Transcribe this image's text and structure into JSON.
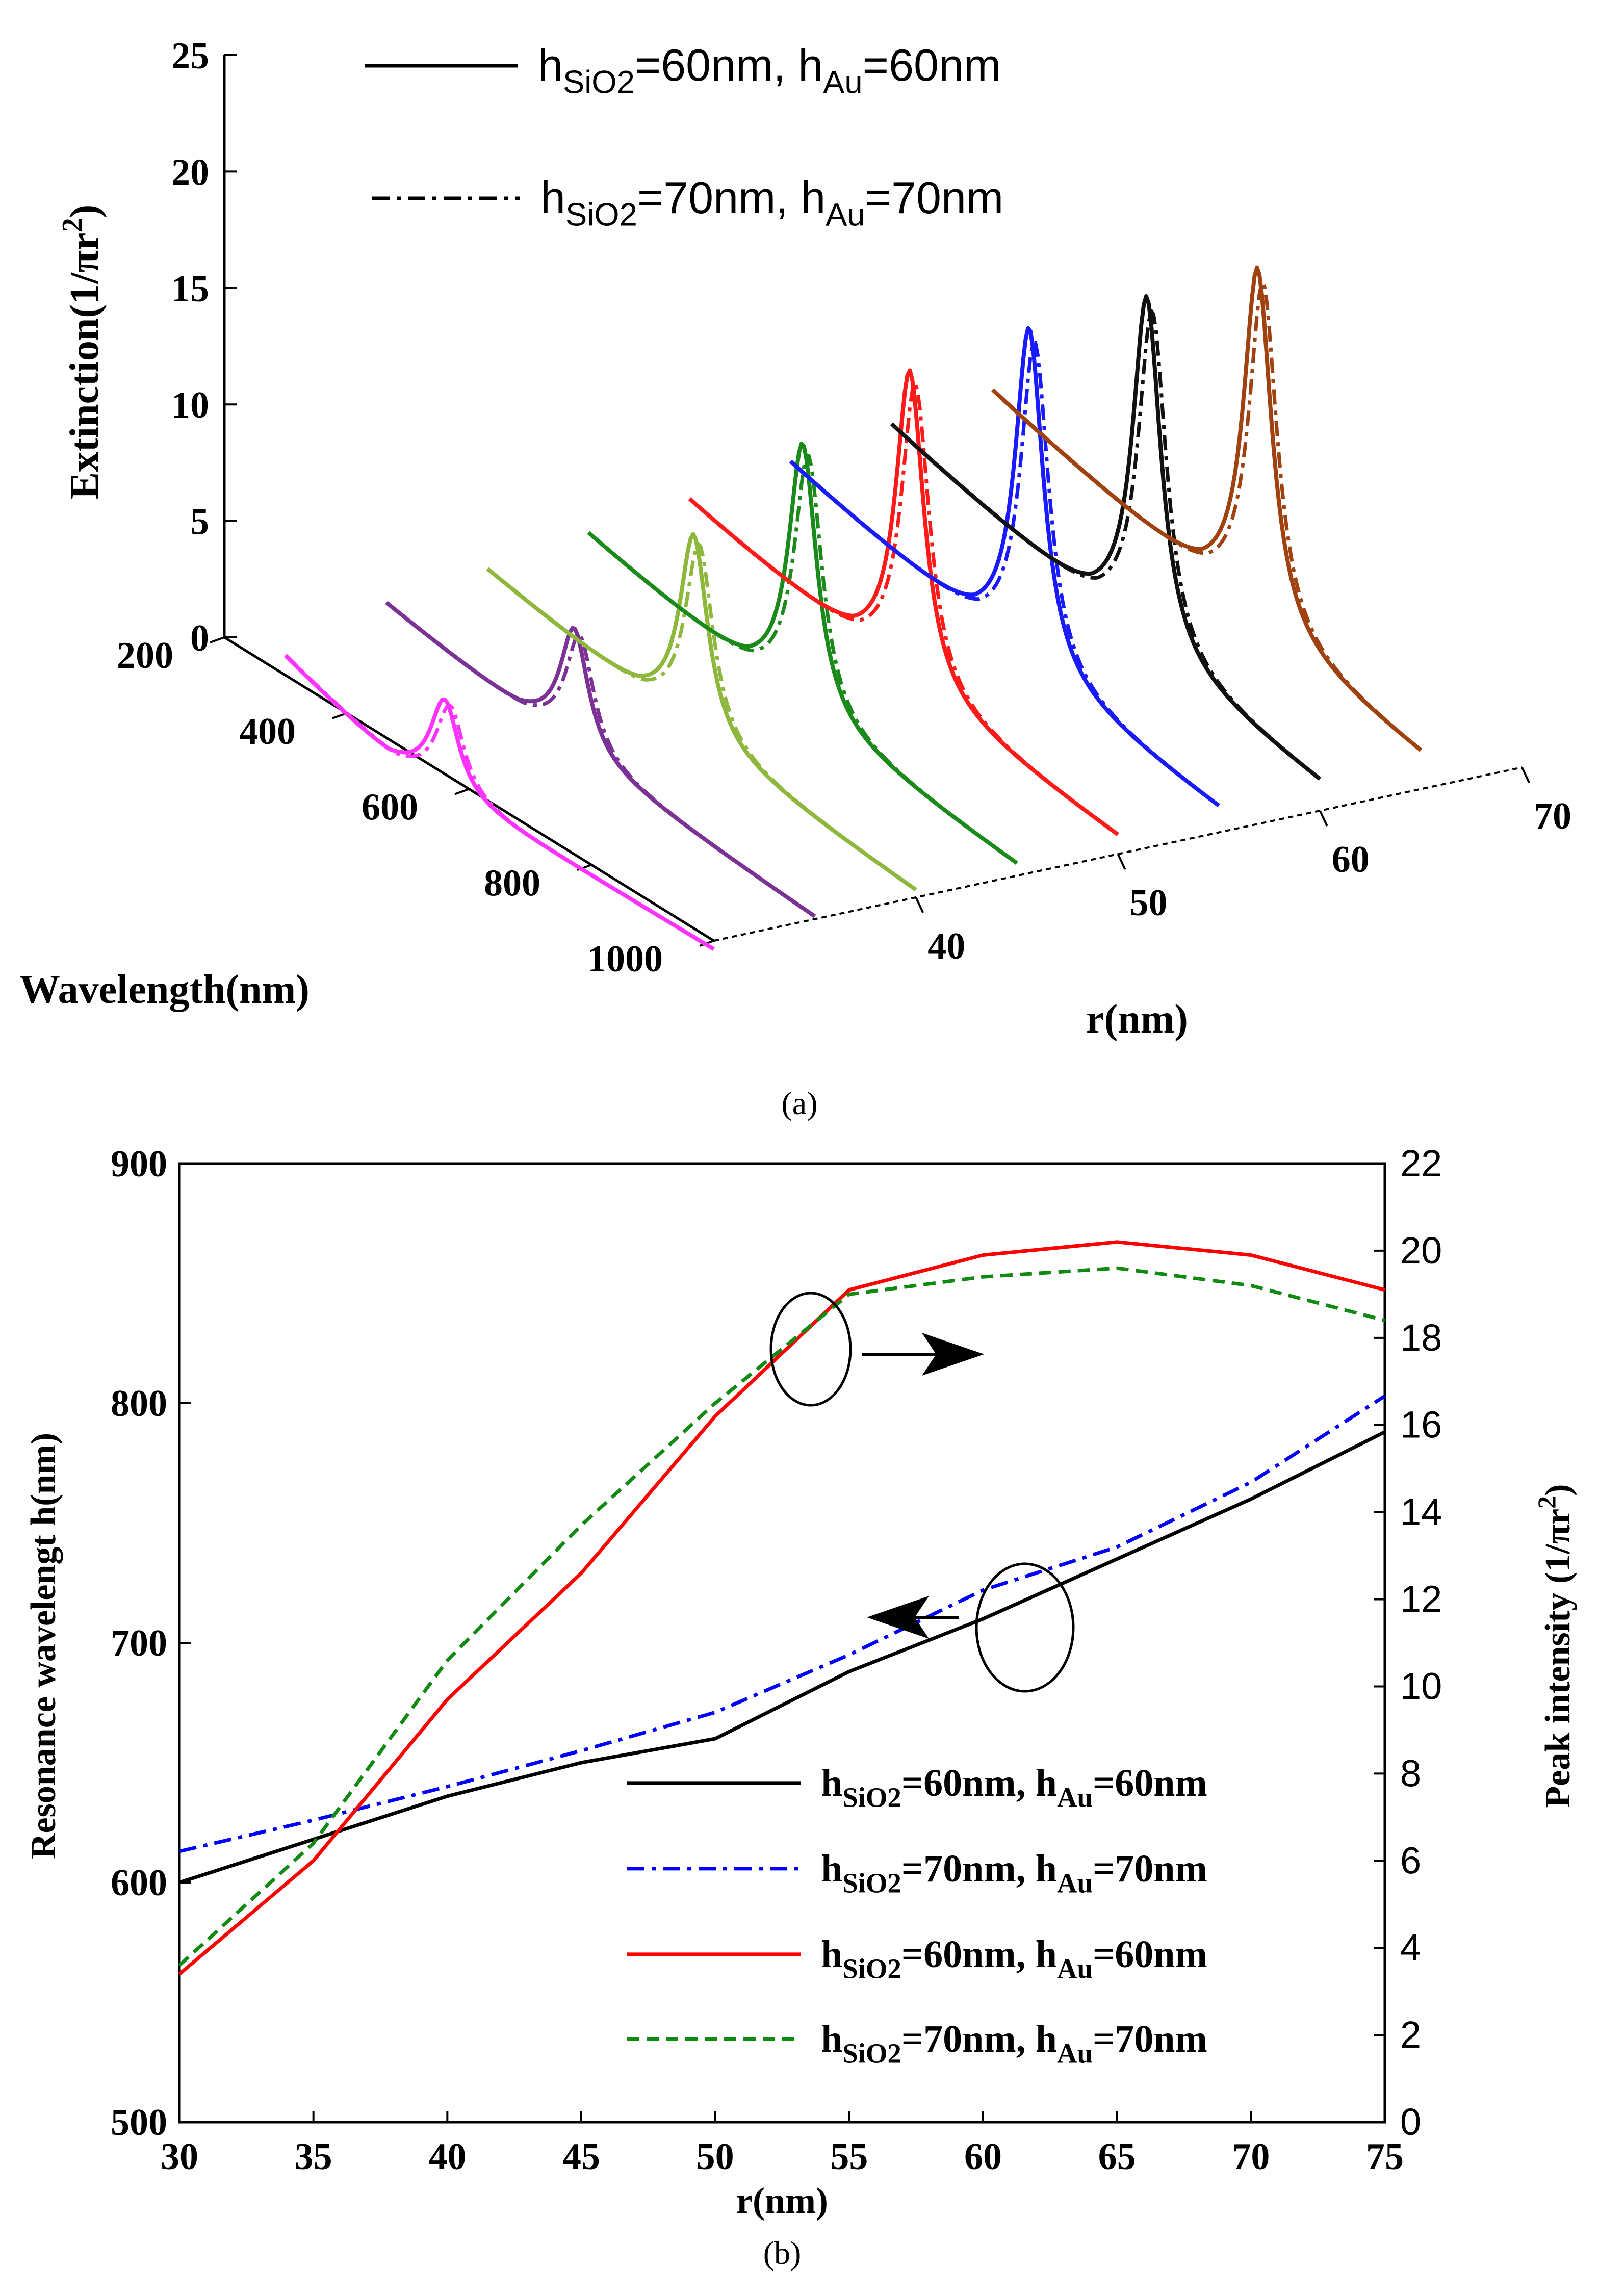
{
  "chart_data": [
    {
      "id": "a",
      "type": "line",
      "subtype": "3d-waterfall",
      "caption": "(a)",
      "ylabel": "Extinction(1/πr²)",
      "ylabel_parts": {
        "main": "Extinction(1/πr",
        "sup": "2",
        "tail": ")"
      },
      "xlabel": "Wavelength(nm)",
      "zlabel": "r(nm)",
      "yticks": [
        "0",
        "5",
        "10",
        "15",
        "20",
        "25"
      ],
      "xticks": [
        "200",
        "400",
        "600",
        "800",
        "1000"
      ],
      "zticks": [
        "40",
        "50",
        "60",
        "70"
      ],
      "ylim": [
        0,
        25
      ],
      "xlim": [
        200,
        1000
      ],
      "legend": [
        {
          "pre": "h",
          "sub1": "SiO2",
          "mid": "=60nm, h",
          "sub2": "Au",
          "post": "=60nm",
          "style": "solid",
          "color": "#000000"
        },
        {
          "pre": "h",
          "sub1": "SiO2",
          "mid": "=70nm, h",
          "sub2": "Au",
          "post": "=70nm",
          "style": "dashdot",
          "color": "#000000"
        }
      ],
      "series": [
        {
          "r": 30,
          "color": "#ff33ff",
          "start": 2.2,
          "dip": -0.8,
          "peak": 3.4,
          "tail": -0.4,
          "peak_wl": 560
        },
        {
          "r": 35,
          "color": "#7b3294",
          "start": 3.0,
          "dip": 1.2,
          "peak": 6.5,
          "tail": 0.1,
          "peak_wl": 607
        },
        {
          "r": 40,
          "color": "#8db83c",
          "start": 3.6,
          "dip": 1.5,
          "peak": 10.3,
          "tail": 0.3,
          "peak_wl": 637
        },
        {
          "r": 45,
          "color": "#1a8a1a",
          "start": 4.4,
          "dip": 1.8,
          "peak": 13.7,
          "tail": 0.5,
          "peak_wl": 650
        },
        {
          "r": 50,
          "color": "#ff1a1a",
          "start": 5.0,
          "dip": 2.2,
          "peak": 16.2,
          "tail": 0.8,
          "peak_wl": 660
        },
        {
          "r": 55,
          "color": "#1a1aff",
          "start": 5.8,
          "dip": 2.6,
          "peak": 17.7,
          "tail": 1.1,
          "peak_wl": 690
        },
        {
          "r": 60,
          "color": "#111111",
          "start": 6.6,
          "dip": 3.0,
          "peak": 18.6,
          "tail": 1.3,
          "peak_wl": 717
        },
        {
          "r": 65,
          "color": "#a0420f",
          "start": 7.2,
          "dip": 3.4,
          "peak": 19.2,
          "tail": 1.6,
          "peak_wl": 733
        }
      ]
    },
    {
      "id": "b",
      "type": "line",
      "caption": "(b)",
      "x": [
        30,
        35,
        40,
        45,
        50,
        55,
        60,
        65,
        70,
        75
      ],
      "xlim": [
        30,
        75
      ],
      "xticks": [
        "30",
        "35",
        "40",
        "45",
        "50",
        "55",
        "60",
        "65",
        "70",
        "75"
      ],
      "xlabel": "r(nm)",
      "ylabel_left": "Resonance wavelengt h(nm)",
      "ylim_left": [
        500,
        900
      ],
      "yticks_left": [
        "500",
        "600",
        "700",
        "800",
        "900"
      ],
      "ylabel_right": "Peak intensity (1/πr²)",
      "ylabel_right_parts": {
        "main": "Peak intensity (1/πr",
        "sup": "2",
        "tail": ")"
      },
      "ylim_right": [
        0,
        22
      ],
      "yticks_right": [
        "0",
        "2",
        "4",
        "6",
        "8",
        "10",
        "12",
        "14",
        "16",
        "18",
        "20",
        "22"
      ],
      "series": [
        {
          "name": "hSiO2=60nm, hAu=60nm",
          "axis": "left",
          "style": "solid",
          "color": "#000000",
          "values": [
            600,
            618,
            636,
            650,
            660,
            688,
            710,
            735,
            760,
            788
          ]
        },
        {
          "name": "hSiO2=70nm, hAu=70nm",
          "axis": "left",
          "style": "dashdot",
          "color": "#0000ff",
          "values": [
            613,
            626,
            640,
            655,
            671,
            695,
            722,
            740,
            767,
            803
          ]
        },
        {
          "name": "hSiO2=60nm, hAu=60nm",
          "axis": "right",
          "style": "solid",
          "color": "#ff0000",
          "values": [
            3.4,
            6.0,
            9.7,
            12.6,
            16.2,
            19.1,
            19.9,
            20.2,
            19.9,
            19.1
          ]
        },
        {
          "name": "hSiO2=70nm, hAu=70nm",
          "axis": "right",
          "style": "dashed",
          "color": "#118a11",
          "values": [
            3.6,
            6.4,
            10.6,
            13.7,
            16.5,
            19.0,
            19.4,
            19.6,
            19.2,
            18.4
          ]
        }
      ],
      "legend": [
        {
          "pre": "h",
          "sub1": "SiO2",
          "mid": "=60nm, h",
          "sub2": "Au",
          "post": "=60nm",
          "style": "solid",
          "color": "#000000"
        },
        {
          "pre": "h",
          "sub1": "SiO2",
          "mid": "=70nm, h",
          "sub2": "Au",
          "post": "=70nm",
          "style": "dashdot",
          "color": "#0000ff"
        },
        {
          "pre": "h",
          "sub1": "SiO2",
          "mid": "=60nm, h",
          "sub2": "Au",
          "post": "=60nm",
          "style": "solid",
          "color": "#ff0000"
        },
        {
          "pre": "h",
          "sub1": "SiO2",
          "mid": "=70nm, h",
          "sub2": "Au",
          "post": "=70nm",
          "style": "dashed",
          "color": "#118a11"
        }
      ],
      "annotations": [
        {
          "target": "right axis",
          "direction": "right"
        },
        {
          "target": "left axis",
          "direction": "left"
        }
      ]
    }
  ]
}
